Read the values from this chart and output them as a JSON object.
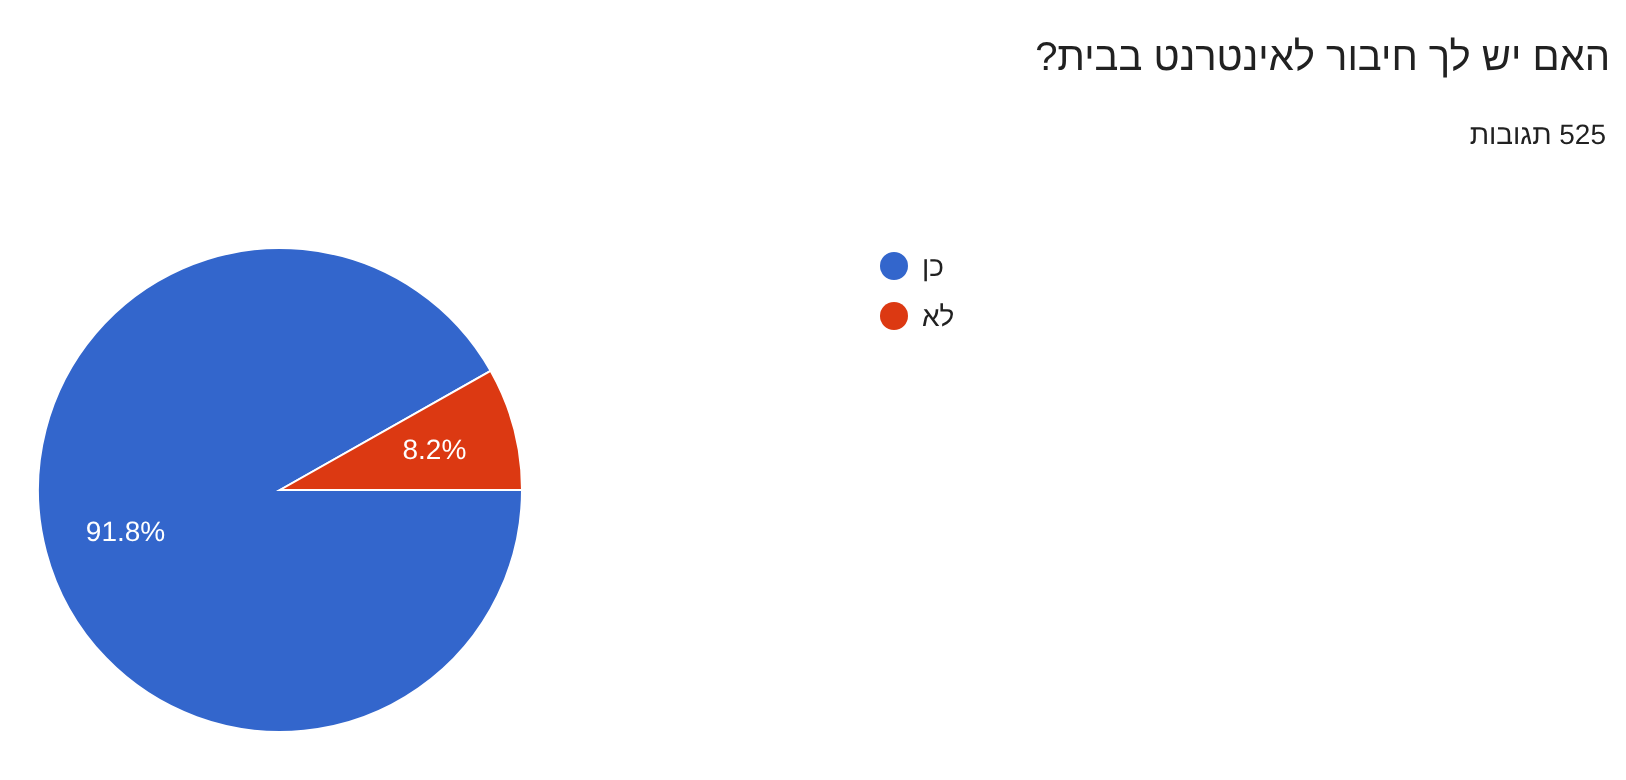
{
  "chart_data": {
    "type": "pie",
    "title": "האם יש לך חיבור לאינטרנט בבית?",
    "subtitle": "525 תגובות",
    "categories": [
      "כן",
      "לא"
    ],
    "values": [
      91.8,
      8.2
    ],
    "colors": [
      "#3366cc",
      "#dc3912"
    ],
    "value_labels": [
      "91.8%",
      "8.2%"
    ],
    "legend": "right"
  }
}
